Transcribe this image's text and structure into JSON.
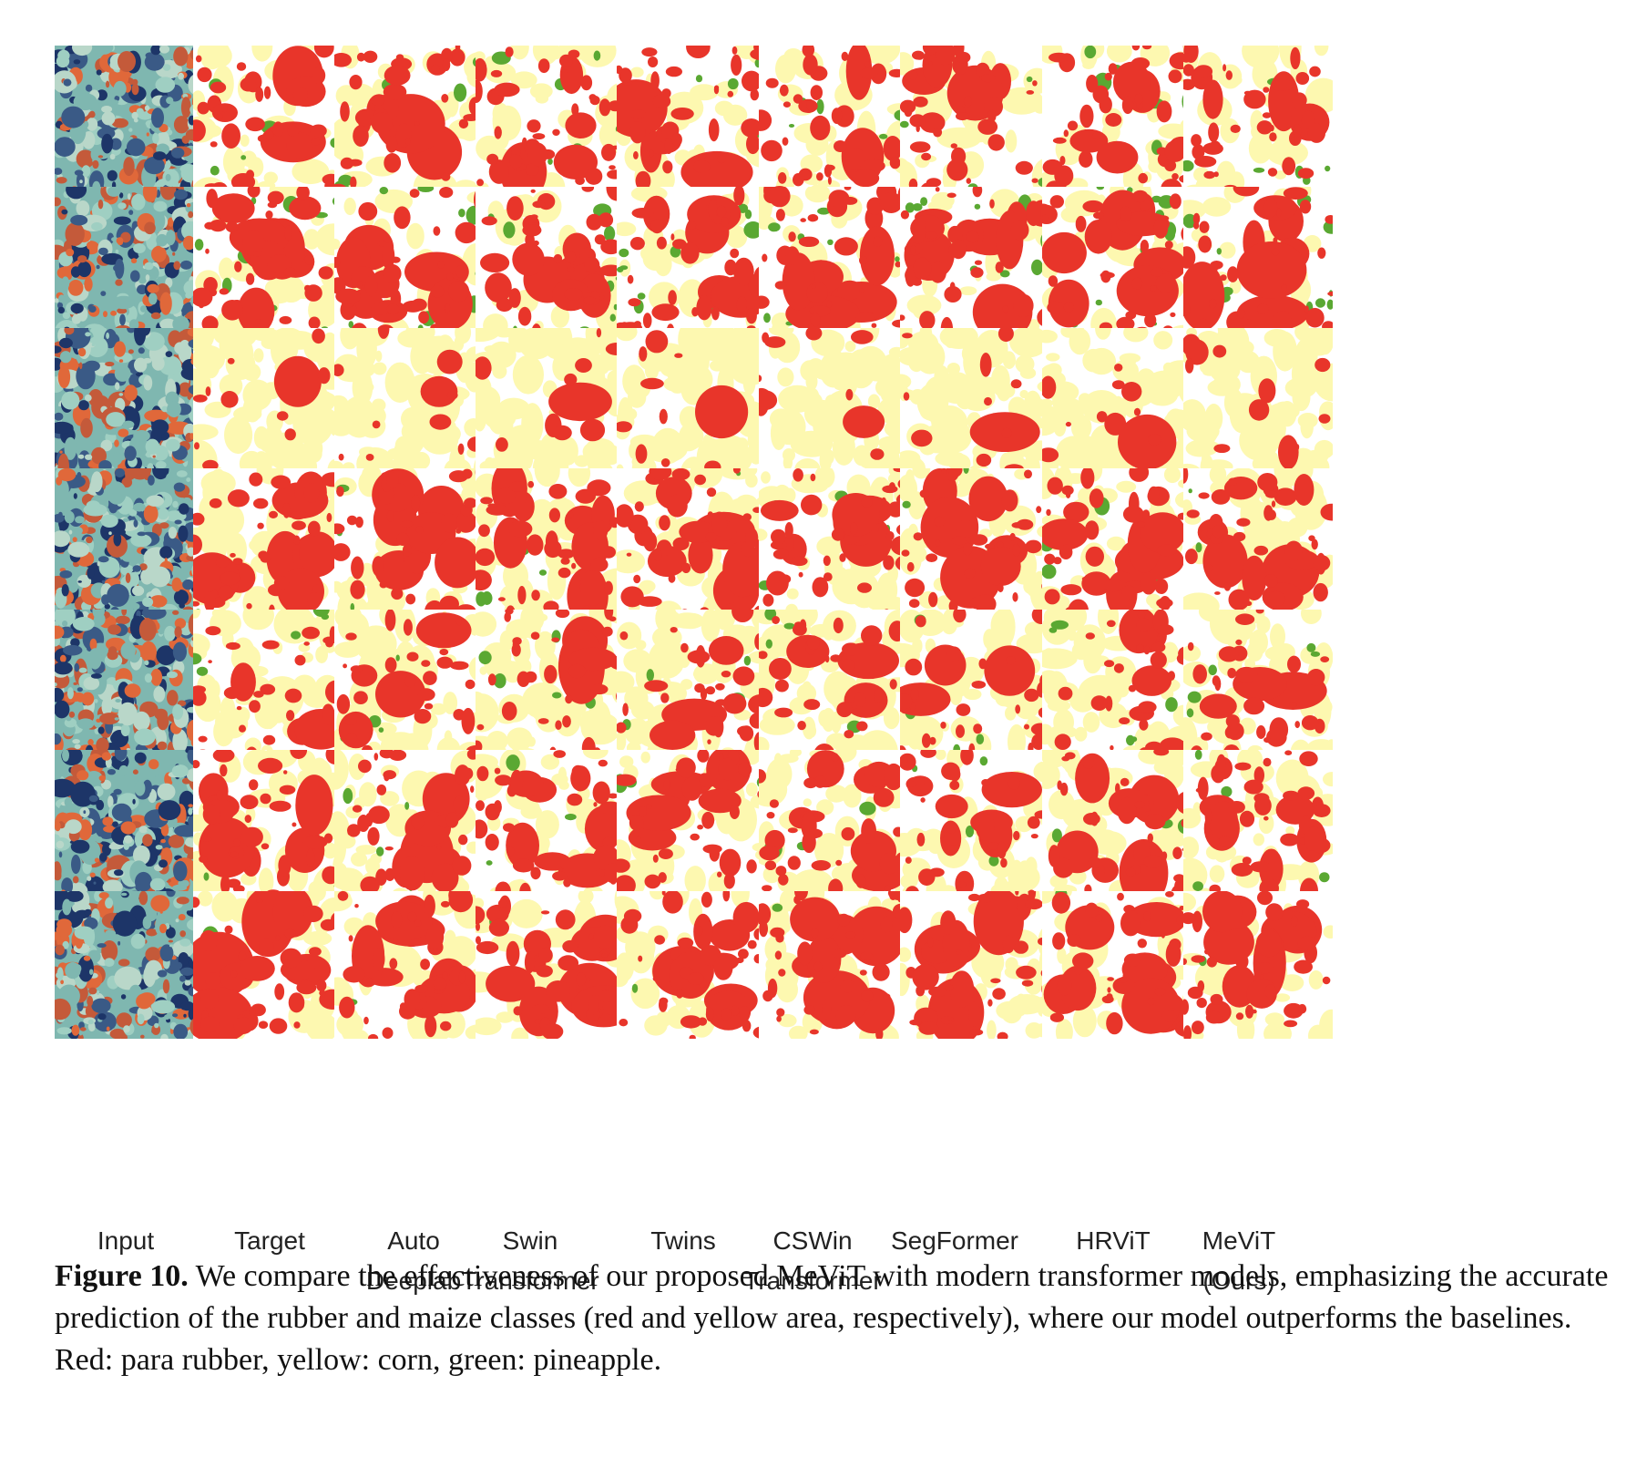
{
  "figure": {
    "columns": [
      {
        "key": "input",
        "lines": [
          "Input"
        ]
      },
      {
        "key": "target",
        "lines": [
          "Target"
        ]
      },
      {
        "key": "autodeeplab",
        "lines": [
          "Auto",
          "Deeplab"
        ]
      },
      {
        "key": "swin",
        "lines": [
          "Swin",
          "Transformer"
        ]
      },
      {
        "key": "twins",
        "lines": [
          "Twins"
        ]
      },
      {
        "key": "cswin",
        "lines": [
          "CSWin",
          "Transformer"
        ]
      },
      {
        "key": "segformer",
        "lines": [
          "SegFormer"
        ]
      },
      {
        "key": "hrvit",
        "lines": [
          "HRViT"
        ]
      },
      {
        "key": "mevit",
        "lines": [
          "MeViT",
          "(Ours)"
        ]
      }
    ],
    "row_count": 7,
    "class_colors": {
      "rubber": "#e8352a",
      "corn": "#fdf8b0",
      "pineapple": "#5aa832",
      "background": "#ffffff"
    },
    "input_palette": [
      "#7fb7b0",
      "#9fcfc2",
      "#3a5a86",
      "#1d3568",
      "#e0683a",
      "#c45a3a",
      "#b9d7c9"
    ]
  },
  "caption": {
    "label": "Figure 10.",
    "text": "We compare the effectiveness of our proposed MeViT with modern transformer models, emphasizing the accurate prediction of the rubber and maize classes (red and yellow area, respectively), where our model outperforms the baselines. Red: para rubber, yellow: corn, green: pineapple."
  }
}
